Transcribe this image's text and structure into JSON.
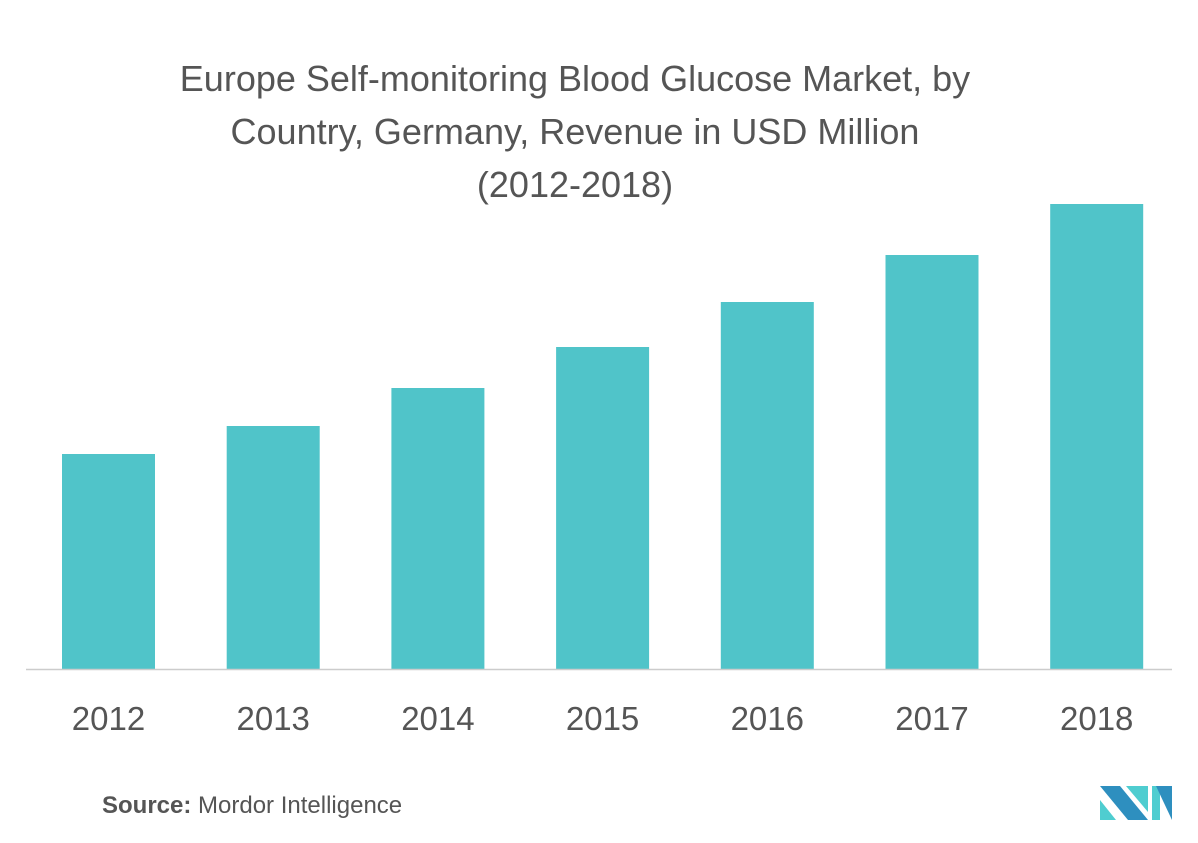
{
  "chart_data": {
    "type": "bar",
    "title": "Europe Self-monitoring Blood Glucose Market, by Country, Germany, Revenue in USD Million (2012-2018)",
    "title_lines": [
      "Europe Self-monitoring Blood Glucose Market, by",
      "Country, Germany, Revenue in USD Million",
      "(2012-2018)"
    ],
    "categories": [
      "2012",
      "2013",
      "2014",
      "2015",
      "2016",
      "2017",
      "2018"
    ],
    "values": [
      215,
      243,
      281,
      322,
      367,
      414,
      465
    ],
    "value_note": "relative heights (no y-axis shown)",
    "xlabel": "",
    "ylabel": "",
    "ylim": [
      0,
      480
    ],
    "grid": false,
    "bar_color": "#50c4c9"
  },
  "source": {
    "label": "Source:",
    "text": "Mordor Intelligence"
  }
}
